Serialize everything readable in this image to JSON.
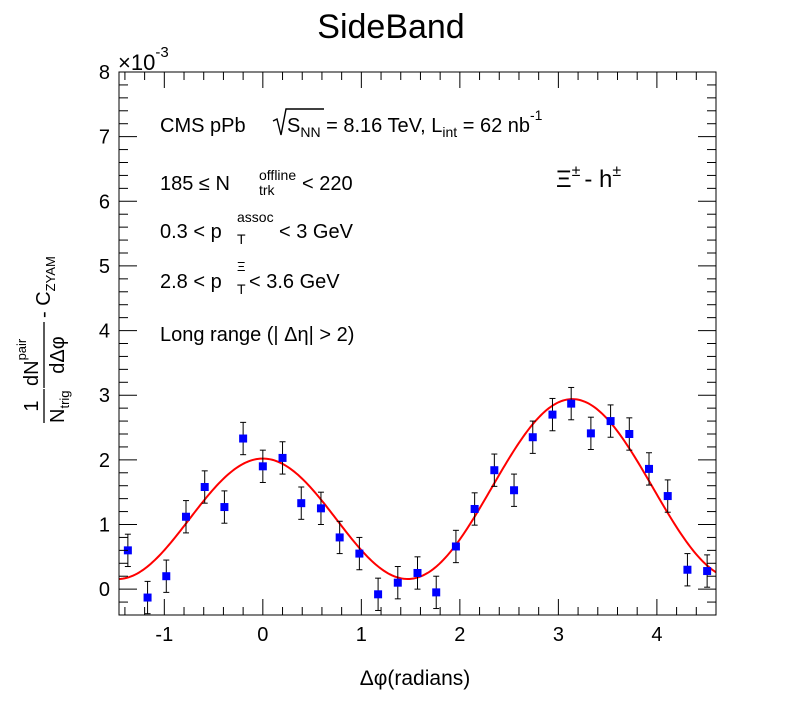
{
  "chart_data": {
    "type": "scatter",
    "title": "SideBand",
    "xlabel": "Δφ(radians)",
    "ylabel": {
      "frac_num": "1",
      "frac_den": "N",
      "frac_den_sub": "trig",
      "dn": "dN",
      "dn_sup": "pair",
      "dn_den": "dΔφ",
      "minus": "- C",
      "minus_sub": "ZYAM"
    },
    "xlim": [
      -1.46,
      4.6
    ],
    "ylim": [
      -0.0004,
      0.008
    ],
    "y_exponent_label": "×10",
    "y_exponent_power": "-3",
    "x_ticks": [
      -1,
      0,
      1,
      2,
      3,
      4
    ],
    "x_tick_labels": [
      "-1",
      "0",
      "1",
      "2",
      "3",
      "4"
    ],
    "y_ticks": [
      0,
      0.001,
      0.002,
      0.003,
      0.004,
      0.005,
      0.006,
      0.007,
      0.008
    ],
    "y_tick_labels": [
      "0",
      "1",
      "2",
      "3",
      "4",
      "5",
      "6",
      "7",
      "8"
    ],
    "grid": false,
    "legend": "none",
    "annotations": {
      "cms": {
        "a": "CMS pPb ",
        "s": "S",
        "s_sub": "NN",
        "b": " = 8.16 TeV, L",
        "l_sub": "int",
        "c": " = 62 nb",
        "c_sup": "-1"
      },
      "mult": {
        "a": "185  ≤  N",
        "sup": "offline",
        "sub": "trk",
        "b": "< 220"
      },
      "assoc": {
        "a": "0.3 < p",
        "sup": "assoc",
        "sub": "T",
        "b": " < 3 GeV"
      },
      "trig": {
        "a": "2.8 < p",
        "sup": "Ξ",
        "sub": "T",
        "b": " < 3.6 GeV"
      },
      "range": "Long range (| Δη| > 2)",
      "species": {
        "a": "Ξ",
        "sup1": "±",
        "b": "- h",
        "sup2": "±"
      }
    },
    "series": [
      {
        "color": "#0000ff",
        "marker": "square",
        "x": [
          -1.37,
          -1.17,
          -0.98,
          -0.78,
          -0.59,
          -0.39,
          -0.2,
          0.0,
          0.2,
          0.39,
          0.59,
          0.78,
          0.98,
          1.17,
          1.37,
          1.57,
          1.76,
          1.96,
          2.15,
          2.35,
          2.55,
          2.74,
          2.94,
          3.13,
          3.33,
          3.53,
          3.72,
          3.92,
          4.11,
          4.31,
          4.51
        ],
        "y": [
          0.0006,
          -0.00013,
          0.0002,
          0.00112,
          0.00158,
          0.00127,
          0.00233,
          0.0019,
          0.00203,
          0.00133,
          0.00125,
          0.0008,
          0.00055,
          -8e-05,
          0.0001,
          0.00025,
          -5e-05,
          0.00066,
          0.00124,
          0.00184,
          0.00153,
          0.00235,
          0.0027,
          0.00287,
          0.00241,
          0.0026,
          0.0024,
          0.00186,
          0.00144,
          0.0003,
          0.00028
        ],
        "yerr": [
          0.00025,
          0.00025,
          0.00025,
          0.00025,
          0.00025,
          0.00025,
          0.00025,
          0.00025,
          0.00025,
          0.00025,
          0.00025,
          0.00025,
          0.00025,
          0.00025,
          0.00025,
          0.00025,
          0.00025,
          0.00025,
          0.00025,
          0.00025,
          0.00025,
          0.00025,
          0.00025,
          0.00025,
          0.00025,
          0.00025,
          0.00025,
          0.00025,
          0.00025,
          0.00025,
          0.00025
        ]
      },
      {
        "type": "line",
        "color": "#ff0000",
        "function": "fourier",
        "a0": 0.00133,
        "a1": -0.00046,
        "a2": 0.00115
      }
    ]
  }
}
